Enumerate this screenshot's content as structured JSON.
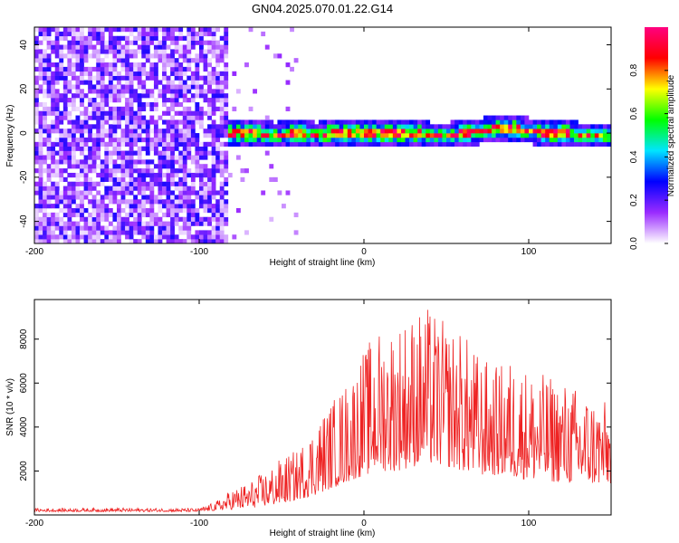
{
  "title": "GN04.2025.070.01.22.G14",
  "chart_data": [
    {
      "type": "heatmap",
      "title": "GN04.2025.070.01.22.G14",
      "xlabel": "Height of straight line (km)",
      "ylabel": "Frequency (Hz)",
      "xlim": [
        -200,
        150
      ],
      "ylim": [
        -50,
        48
      ],
      "xticks": [
        -200,
        -100,
        0,
        100
      ],
      "xtick_labels": [
        "-200",
        "-100",
        "0",
        "100"
      ],
      "yticks": [
        -40,
        -20,
        0,
        20,
        40
      ],
      "ytick_labels": [
        "-40",
        "-20",
        "0",
        "20",
        "40"
      ],
      "noise_region_end_km": -83,
      "signal_track": {
        "x": [
          -83,
          -70,
          -55,
          -40,
          -30,
          -20,
          -10,
          0,
          10,
          20,
          30,
          40,
          50,
          60,
          70,
          80,
          90,
          100,
          110,
          120,
          130,
          140,
          150
        ],
        "y": [
          0,
          0,
          -1,
          0,
          -1,
          0,
          0,
          0,
          0,
          0,
          0,
          -1,
          -1,
          0,
          1,
          2,
          2,
          1,
          0,
          0,
          -1,
          -1,
          -1
        ]
      },
      "colorbar": {
        "label": "Normalized spectral amplitude",
        "range": [
          0,
          1
        ],
        "ticks": [
          0.0,
          0.2,
          0.4,
          0.6,
          0.8
        ],
        "tick_labels": [
          "0.0",
          "0.2",
          "0.4",
          "0.6",
          "0.8"
        ],
        "colormap": [
          "#ffffff",
          "#9a2bff",
          "#0000ff",
          "#00e5ff",
          "#00ff00",
          "#ffff00",
          "#ff0000",
          "#ff0080"
        ]
      }
    },
    {
      "type": "line",
      "xlabel": "Height of straight line (km)",
      "ylabel": "SNR (10 * v/v)",
      "xlim": [
        -200,
        150
      ],
      "ylim": [
        0,
        9800
      ],
      "xticks": [
        -200,
        -100,
        0,
        100
      ],
      "xtick_labels": [
        "-200",
        "-100",
        "0",
        "100"
      ],
      "yticks": [
        2000,
        4000,
        6000,
        8000
      ],
      "ytick_labels": [
        "2000",
        "4000",
        "6000",
        "8000"
      ],
      "color": "#ee2222",
      "envelope": {
        "x": [
          -200,
          -150,
          -100,
          -90,
          -80,
          -70,
          -60,
          -50,
          -40,
          -30,
          -20,
          -10,
          0,
          10,
          20,
          30,
          40,
          50,
          60,
          70,
          80,
          90,
          100,
          110,
          120,
          130,
          140,
          150
        ],
        "y_min": [
          150,
          150,
          150,
          200,
          250,
          300,
          400,
          500,
          700,
          900,
          1200,
          1500,
          1800,
          2000,
          2000,
          2200,
          2300,
          2200,
          2000,
          1800,
          1800,
          1700,
          1600,
          1500,
          1500,
          1400,
          1400,
          1400
        ],
        "y_max": [
          300,
          320,
          300,
          600,
          1200,
          1500,
          2000,
          2600,
          3000,
          4200,
          5200,
          6200,
          7600,
          8600,
          8900,
          9300,
          9500,
          8700,
          8400,
          7300,
          6800,
          7200,
          6700,
          6400,
          6200,
          5800,
          5500,
          5000
        ]
      }
    }
  ]
}
